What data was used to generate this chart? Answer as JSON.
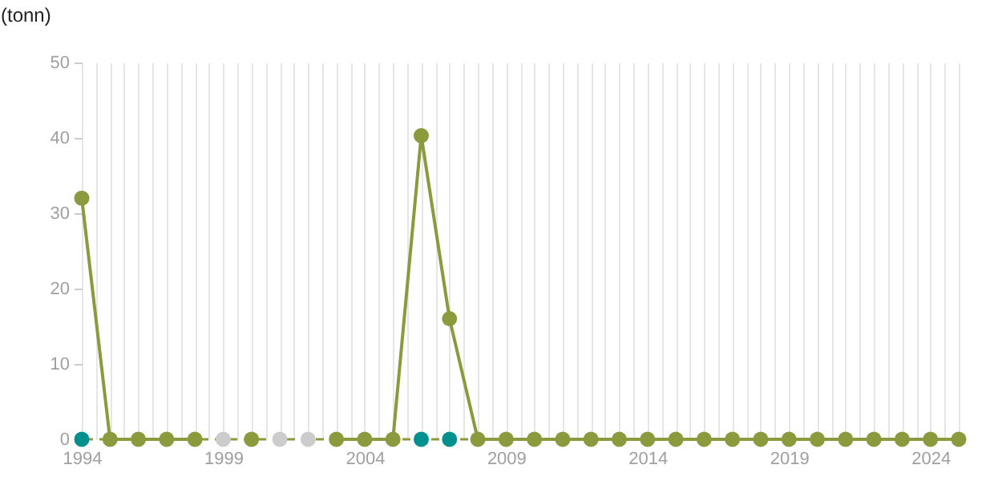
{
  "chart_data": {
    "type": "line",
    "ylabel": "(tonn)",
    "x": [
      1994,
      1995,
      1996,
      1997,
      1998,
      1999,
      2000,
      2001,
      2002,
      2003,
      2004,
      2005,
      2006,
      2007,
      2008,
      2009,
      2010,
      2011,
      2012,
      2013,
      2014,
      2015,
      2016,
      2017,
      2018,
      2019,
      2020,
      2021,
      2022,
      2023,
      2024,
      2025
    ],
    "series": [
      {
        "color": "#8a9a3c",
        "values": [
          32,
          0,
          0,
          0,
          0,
          null,
          0,
          null,
          null,
          0,
          0,
          0,
          40.3,
          16,
          0,
          0,
          0,
          0,
          0,
          0,
          0,
          0,
          0,
          0,
          0,
          0,
          0,
          0,
          0,
          0,
          0,
          0
        ]
      },
      {
        "type": "scatter",
        "x": [
          1994,
          1999,
          2001,
          2002,
          2006,
          2007
        ],
        "values": [
          0,
          0,
          0,
          0,
          0,
          0
        ],
        "colors": [
          "#00918e",
          "#cccccc",
          "#cccccc",
          "#cccccc",
          "#00918e",
          "#00918e"
        ]
      }
    ],
    "marker": "circle",
    "xlim": [
      1994,
      2025
    ],
    "ylim": [
      0,
      50
    ],
    "yticks": [
      0,
      10,
      20,
      30,
      40,
      50
    ],
    "xticks": [
      1994,
      {
        "value": 1994.5,
        "label": null
      },
      {
        "value": 1995,
        "label": null
      },
      {
        "value": 1995.5,
        "label": null
      },
      {
        "value": 1996,
        "label": null
      },
      {
        "value": 1996.5,
        "label": null
      },
      {
        "value": 1997,
        "label": null
      },
      {
        "value": 1997.5,
        "label": null
      },
      {
        "value": 1998,
        "label": null
      },
      {
        "value": 1998.5,
        "label": null
      },
      1999,
      {
        "value": 1999.5,
        "label": null
      },
      {
        "value": 2000,
        "label": null
      },
      {
        "value": 2000.5,
        "label": null
      },
      {
        "value": 2001,
        "label": null
      },
      {
        "value": 2001.5,
        "label": null
      },
      {
        "value": 2002,
        "label": null
      },
      {
        "value": 2002.5,
        "label": null
      },
      {
        "value": 2003,
        "label": null
      },
      {
        "value": 2003.5,
        "label": null
      },
      2004,
      {
        "value": 2004.5,
        "label": null
      },
      {
        "value": 2005,
        "label": null
      },
      {
        "value": 2005.5,
        "label": null
      },
      {
        "value": 2006,
        "label": null
      },
      {
        "value": 2006.5,
        "label": null
      },
      {
        "value": 2007,
        "label": null
      },
      {
        "value": 2007.5,
        "label": null
      },
      {
        "value": 2008,
        "label": null
      },
      {
        "value": 2008.5,
        "label": null
      },
      2009,
      {
        "value": 2009.5,
        "label": null
      },
      {
        "value": 2010,
        "label": null
      },
      {
        "value": 2010.5,
        "label": null
      },
      {
        "value": 2011,
        "label": null
      },
      {
        "value": 2011.5,
        "label": null
      },
      {
        "value": 2012,
        "label": null
      },
      {
        "value": 2012.5,
        "label": null
      },
      {
        "value": 2013,
        "label": null
      },
      {
        "value": 2013.5,
        "label": null
      },
      2014,
      {
        "value": 2014.5,
        "label": null
      },
      {
        "value": 2015,
        "label": null
      },
      {
        "value": 2015.5,
        "label": null
      },
      {
        "value": 2016,
        "label": null
      },
      {
        "value": 2016.5,
        "label": null
      },
      {
        "value": 2017,
        "label": null
      },
      {
        "value": 2017.5,
        "label": null
      },
      {
        "value": 2018,
        "label": null
      },
      {
        "value": 2018.5,
        "label": null
      },
      2019,
      {
        "value": 2019.5,
        "label": null
      },
      {
        "value": 2020,
        "label": null
      },
      {
        "value": 2020.5,
        "label": null
      },
      {
        "value": 2021,
        "label": null
      },
      {
        "value": 2021.5,
        "label": null
      },
      {
        "value": 2022,
        "label": null
      },
      {
        "value": 2022.5,
        "label": null
      },
      {
        "value": 2023,
        "label": null
      },
      {
        "value": 2023.5,
        "label": null
      },
      2024,
      {
        "value": 2024.5,
        "label": null
      },
      {
        "value": 2025,
        "label": null
      }
    ],
    "grid": "x",
    "ref_lines": [
      {
        "axis": "y",
        "value": 0,
        "color": "#8a9a3c",
        "line_style": "dashed"
      }
    ]
  }
}
